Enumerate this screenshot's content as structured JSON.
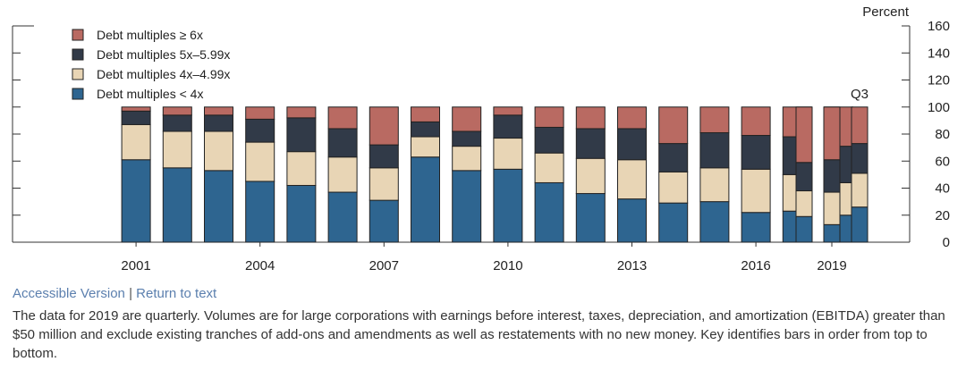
{
  "links": {
    "accessible": "Accessible Version",
    "separator": "|",
    "return": "Return to text"
  },
  "note": "The data for 2019 are quarterly. Volumes are for large corporations with earnings before interest, taxes, depreciation, and amortization (EBITDA) greater than $50 million and exclude existing tranches of add-ons and amendments as well as restatements with no new money. Key identifies bars in order from top to bottom.",
  "chart_data": {
    "type": "bar",
    "stacked": true,
    "title": "",
    "ylabel": "Percent",
    "ylim": [
      0,
      160
    ],
    "yticks": [
      0,
      20,
      40,
      60,
      80,
      100,
      120,
      140,
      160
    ],
    "grid": false,
    "legend_position": "top-left",
    "categories": [
      "1997",
      "1998",
      "1999",
      "2000",
      "2001",
      "2002",
      "2003",
      "2004",
      "2005",
      "2006",
      "2007",
      "2008",
      "2009",
      "2010",
      "2011",
      "2012",
      "2013",
      "2014",
      "2015",
      "2016",
      "2017",
      "2018",
      "2019:Q1",
      "2019:Q2",
      "2019:Q3"
    ],
    "xtick_labels": [
      "2001",
      "2004",
      "2007",
      "2010",
      "2013",
      "2016",
      "2019"
    ],
    "annotation": "Q3",
    "series": [
      {
        "name": "Debt multiples < 4x",
        "color": "#2e6590",
        "values": [
          0,
          0,
          0,
          0,
          61,
          55,
          53,
          45,
          42,
          37,
          31,
          63,
          53,
          54,
          44,
          36,
          32,
          29,
          30,
          22,
          23,
          20,
          19,
          13,
          26
        ]
      },
      {
        "name": "Debt multiples 4x–4.99x",
        "color": "#e8d5b5",
        "values": [
          0,
          0,
          0,
          0,
          26,
          27,
          29,
          29,
          25,
          26,
          24,
          15,
          18,
          23,
          22,
          26,
          29,
          23,
          25,
          32,
          27,
          24,
          19,
          24,
          25
        ]
      },
      {
        "name": "Debt multiples 5x–5.99x",
        "color": "#313a48",
        "values": [
          0,
          0,
          0,
          0,
          10,
          12,
          12,
          17,
          25,
          21,
          17,
          11,
          11,
          17,
          19,
          22,
          23,
          21,
          26,
          25,
          28,
          27,
          21,
          24,
          22
        ]
      },
      {
        "name": "Debt multiples ≥ 6x",
        "color": "#b96a62",
        "values": [
          0,
          0,
          0,
          0,
          3,
          6,
          6,
          9,
          8,
          16,
          28,
          11,
          18,
          6,
          15,
          16,
          16,
          27,
          19,
          21,
          22,
          29,
          41,
          39,
          27
        ]
      }
    ]
  }
}
